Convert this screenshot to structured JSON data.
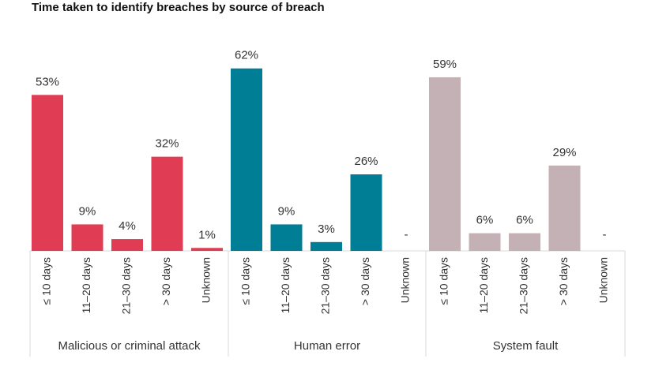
{
  "chart_data": {
    "type": "bar",
    "title": "Time taken to identify breaches by source of breach",
    "categories": [
      "≤ 10 days",
      "11–20 days",
      "21–30 days",
      "> 30 days",
      "Unknown"
    ],
    "groups": [
      {
        "name": "Malicious or criminal attack",
        "color": "#e03c53",
        "values": [
          53,
          9,
          4,
          32,
          1
        ],
        "labels": [
          "53%",
          "9%",
          "4%",
          "32%",
          "1%"
        ]
      },
      {
        "name": "Human error",
        "color": "#007e96",
        "values": [
          62,
          9,
          3,
          26,
          0
        ],
        "labels": [
          "62%",
          "9%",
          "3%",
          "26%",
          "-"
        ]
      },
      {
        "name": "System fault",
        "color": "#c3b1b5",
        "values": [
          59,
          6,
          6,
          29,
          0
        ],
        "labels": [
          "59%",
          "6%",
          "6%",
          "29%",
          "-"
        ]
      }
    ],
    "unit": "%",
    "grid": false,
    "legend": "none"
  }
}
